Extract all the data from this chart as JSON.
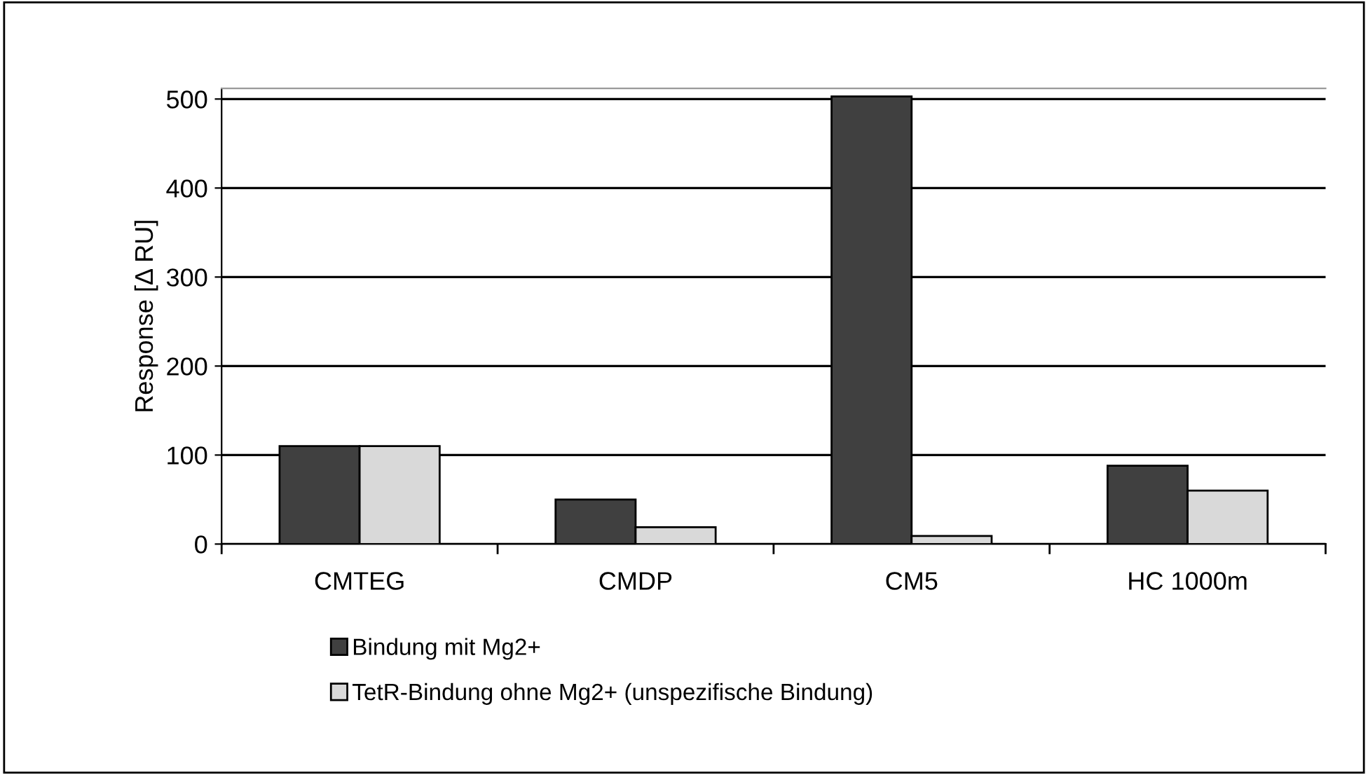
{
  "chart_data": {
    "type": "bar",
    "ylabel": "Response [Δ RU]",
    "categories": [
      "CMTEG",
      "CMDP",
      "CM5",
      "HC 1000m"
    ],
    "series": [
      {
        "name": "Bindung mit Mg2+",
        "color": "#404040",
        "values": [
          110,
          50,
          503,
          88
        ]
      },
      {
        "name": "TetR-Bindung ohne Mg2+ (unspezifische Bindung)",
        "color": "#d9d9d9",
        "values": [
          110,
          19,
          9,
          60
        ]
      }
    ],
    "ylim": [
      0,
      512
    ],
    "yticks": [
      0,
      100,
      200,
      300,
      400,
      500
    ],
    "grid": "y",
    "legend": "bottom"
  }
}
